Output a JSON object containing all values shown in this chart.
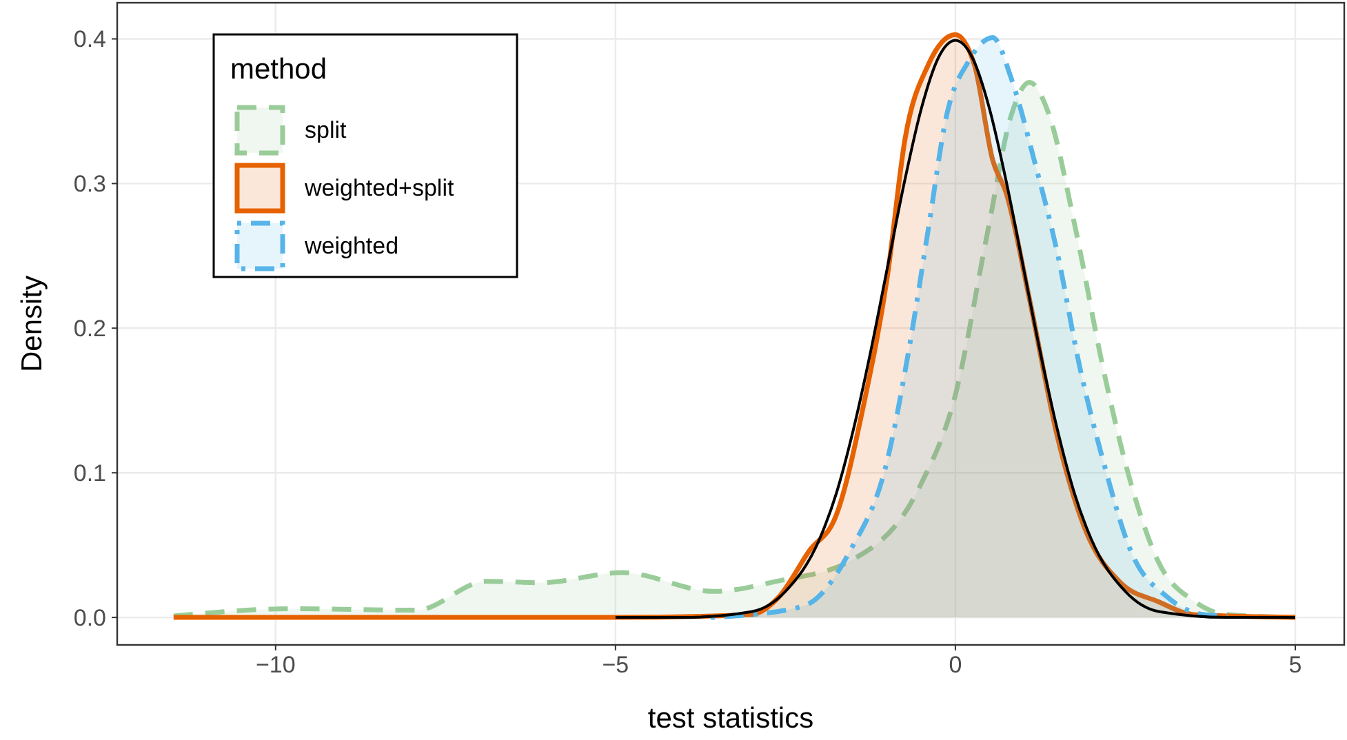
{
  "chart_data": {
    "type": "area",
    "xlabel": "test statistics",
    "ylabel": "Density",
    "legend_title": "method",
    "legend": "top left",
    "grid": true,
    "xlim": [
      -12.33,
      5.72
    ],
    "ylim": [
      -0.019,
      0.425
    ],
    "xticks": [
      {
        "value": -10,
        "label": "−10"
      },
      {
        "value": -5,
        "label": "−5"
      },
      0,
      5
    ],
    "yticks": [
      {
        "value": 0,
        "label": "0.0"
      },
      {
        "value": 0.1,
        "label": "0.1"
      },
      {
        "value": 0.2,
        "label": "0.2"
      },
      {
        "value": 0.3,
        "label": "0.3"
      },
      {
        "value": 0.4,
        "label": "0.4"
      }
    ],
    "series": [
      {
        "name": "split",
        "color": "#99cc99",
        "line_style": "dashed",
        "x": [
          -11.5,
          -9.75,
          -7.93,
          -6.9,
          -6.1,
          -4.9,
          -3.55,
          -2.63,
          -1.55,
          -0.53,
          0,
          0.48,
          0.82,
          1.09,
          1.36,
          1.77,
          2.17,
          2.58,
          2.98,
          3.52,
          4,
          5
        ],
        "values": [
          0.001,
          0.006,
          0.005,
          0.025,
          0.024,
          0.031,
          0.018,
          0.025,
          0.039,
          0.09,
          0.154,
          0.268,
          0.347,
          0.37,
          0.35,
          0.268,
          0.173,
          0.093,
          0.039,
          0.011,
          0.002,
          0
        ]
      },
      {
        "name": "weighted+split",
        "color": "#e66100",
        "line_style": "solid",
        "x": [
          -11.5,
          -5,
          -3,
          -2.6,
          -2.15,
          -1.75,
          -1.35,
          -1,
          -0.74,
          -0.4,
          0,
          0.28,
          0.55,
          0.75,
          1.09,
          1.5,
          1.9,
          2.43,
          2.98,
          3.5,
          4,
          5
        ],
        "values": [
          0,
          0,
          0.002,
          0.014,
          0.046,
          0.071,
          0.147,
          0.236,
          0.331,
          0.382,
          0.403,
          0.382,
          0.316,
          0.293,
          0.22,
          0.125,
          0.062,
          0.024,
          0.011,
          0.002,
          0.001,
          0
        ]
      },
      {
        "name": "weighted",
        "color": "#56b4e9",
        "line_style": "dashdot",
        "x": [
          -3.6,
          -3.25,
          -2.23,
          -1.55,
          -1,
          -0.67,
          -0.4,
          -0.13,
          0.2,
          0.55,
          0.82,
          1.16,
          1.5,
          1.83,
          2.17,
          2.58,
          3.12,
          3.66,
          4
        ],
        "values": [
          0,
          0.001,
          0.008,
          0.046,
          0.109,
          0.189,
          0.268,
          0.347,
          0.385,
          0.401,
          0.373,
          0.316,
          0.252,
          0.173,
          0.109,
          0.046,
          0.014,
          0.002,
          0.001
        ]
      },
      {
        "type": "line",
        "color": "#000000",
        "line_style": "solid",
        "x": [
          -5,
          -4,
          -3,
          -2.5,
          -2,
          -1.75,
          -1.5,
          -1.25,
          -1,
          -0.75,
          -0.5,
          -0.25,
          0,
          0.25,
          0.5,
          0.75,
          1,
          1.25,
          1.5,
          1.75,
          2,
          2.5,
          3,
          4,
          5
        ],
        "values": [
          0,
          0,
          0.004,
          0.018,
          0.054,
          0.086,
          0.13,
          0.183,
          0.242,
          0.301,
          0.352,
          0.387,
          0.399,
          0.387,
          0.352,
          0.301,
          0.242,
          0.183,
          0.13,
          0.086,
          0.054,
          0.018,
          0.004,
          0,
          0
        ]
      }
    ]
  }
}
